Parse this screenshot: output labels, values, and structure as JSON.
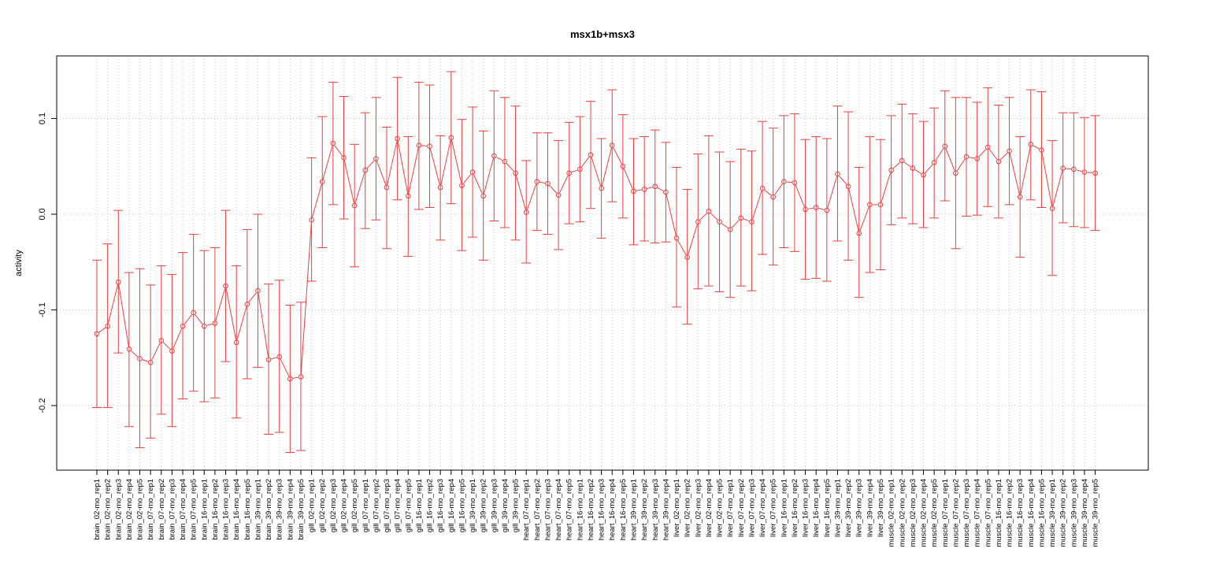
{
  "chart_data": {
    "type": "line",
    "title": "msx1b+msx3",
    "xlabel": "",
    "ylabel": "activity",
    "ylim": [
      -0.265,
      0.165
    ],
    "yticks": [
      0.1,
      0.0,
      -0.1,
      -0.2
    ],
    "ytick_labels": [
      "0.1",
      "0.0",
      "-0.1",
      "-0.2"
    ],
    "grid": true,
    "colors": {
      "series": "#e8413f",
      "grid": "#c8c8c8",
      "frame": "#000000"
    },
    "categories": [
      "brain_02-mo_rep1",
      "brain_02-mo_rep2",
      "brain_02-mo_rep3",
      "brain_02-mo_rep4",
      "brain_02-mo_rep5",
      "brain_07-mo_rep1",
      "brain_07-mo_rep2",
      "brain_07-mo_rep3",
      "brain_07-mo_rep4",
      "brain_07-mo_rep5",
      "brain_16-mo_rep1",
      "brain_16-mo_rep2",
      "brain_16-mo_rep3",
      "brain_16-mo_rep4",
      "brain_16-mo_rep5",
      "brain_39-mo_rep1",
      "brain_39-mo_rep2",
      "brain_39-mo_rep3",
      "brain_39-mo_rep4",
      "brain_39-mo_rep5",
      "gill_02-mo_rep1",
      "gill_02-mo_rep2",
      "gill_02-mo_rep3",
      "gill_02-mo_rep4",
      "gill_02-mo_rep5",
      "gill_07-mo_rep1",
      "gill_07-mo_rep2",
      "gill_07-mo_rep3",
      "gill_07-mo_rep4",
      "gill_07-mo_rep5",
      "gill_16-mo_rep1",
      "gill_16-mo_rep2",
      "gill_16-mo_rep3",
      "gill_16-mo_rep4",
      "gill_16-mo_rep5",
      "gill_39-mo_rep1",
      "gill_39-mo_rep2",
      "gill_39-mo_rep3",
      "gill_39-mo_rep4",
      "gill_39-mo_rep5",
      "heart_07-mo_rep1",
      "heart_07-mo_rep2",
      "heart_07-mo_rep3",
      "heart_07-mo_rep4",
      "heart_07-mo_rep5",
      "heart_16-mo_rep1",
      "heart_16-mo_rep2",
      "heart_16-mo_rep3",
      "heart_16-mo_rep4",
      "heart_16-mo_rep5",
      "heart_39-mo_rep1",
      "heart_39-mo_rep2",
      "heart_39-mo_rep3",
      "heart_39-mo_rep4",
      "liver_02-mo_rep1",
      "liver_02-mo_rep2",
      "liver_02-mo_rep3",
      "liver_02-mo_rep4",
      "liver_02-mo_rep5",
      "liver_07-mo_rep1",
      "liver_07-mo_rep2",
      "liver_07-mo_rep3",
      "liver_07-mo_rep4",
      "liver_07-mo_rep5",
      "liver_16-mo_rep1",
      "liver_16-mo_rep2",
      "liver_16-mo_rep3",
      "liver_16-mo_rep4",
      "liver_16-mo_rep5",
      "liver_39-mo_rep1",
      "liver_39-mo_rep2",
      "liver_39-mo_rep3",
      "liver_39-mo_rep4",
      "liver_39-mo_rep5",
      "muscle_02-mo_rep1",
      "muscle_02-mo_rep2",
      "muscle_02-mo_rep3",
      "muscle_02-mo_rep4",
      "muscle_02-mo_rep5",
      "muscle_07-mo_rep1",
      "muscle_07-mo_rep2",
      "muscle_07-mo_rep3",
      "muscle_07-mo_rep4",
      "muscle_07-mo_rep5",
      "muscle_16-mo_rep1",
      "muscle_16-mo_rep2",
      "muscle_16-mo_rep3",
      "muscle_16-mo_rep4",
      "muscle_16-mo_rep5",
      "muscle_39-mo_rep1",
      "muscle_39-mo_rep2",
      "muscle_39-mo_rep3",
      "muscle_39-mo_rep4",
      "muscle_39-mo_rep5"
    ],
    "series": [
      {
        "values": [
          -0.125,
          -0.117,
          -0.071,
          -0.141,
          -0.151,
          -0.155,
          -0.132,
          -0.143,
          -0.117,
          -0.103,
          -0.117,
          -0.114,
          -0.075,
          -0.134,
          -0.094,
          -0.08,
          -0.152,
          -0.149,
          -0.172,
          -0.17,
          -0.006,
          0.034,
          0.074,
          0.059,
          0.009,
          0.046,
          0.058,
          0.028,
          0.079,
          0.019,
          0.072,
          0.071,
          0.028,
          0.08,
          0.03,
          0.044,
          0.019,
          0.061,
          0.055,
          0.043,
          0.002,
          0.034,
          0.032,
          0.02,
          0.043,
          0.047,
          0.062,
          0.027,
          0.072,
          0.05,
          0.024,
          0.026,
          0.029,
          0.023,
          -0.025,
          -0.045,
          -0.008,
          0.003,
          -0.008,
          -0.016,
          -0.004,
          -0.008,
          0.027,
          0.018,
          0.034,
          0.033,
          0.005,
          0.007,
          0.004,
          0.042,
          0.029,
          -0.02,
          0.01,
          0.01,
          0.046,
          0.056,
          0.048,
          0.041,
          0.054,
          0.071,
          0.043,
          0.06,
          0.058,
          0.07,
          0.055,
          0.066,
          0.018,
          0.073,
          0.067,
          0.006,
          0.048,
          0.047,
          0.044,
          0.043
        ],
        "upper": [
          -0.048,
          -0.031,
          0.004,
          -0.061,
          -0.057,
          -0.074,
          -0.054,
          -0.063,
          -0.04,
          -0.021,
          -0.038,
          -0.035,
          0.004,
          -0.054,
          -0.016,
          0.0,
          -0.073,
          -0.069,
          -0.095,
          -0.092,
          0.059,
          0.102,
          0.138,
          0.123,
          0.073,
          0.106,
          0.122,
          0.091,
          0.143,
          0.081,
          0.138,
          0.135,
          0.082,
          0.149,
          0.099,
          0.112,
          0.087,
          0.129,
          0.122,
          0.113,
          0.056,
          0.085,
          0.085,
          0.077,
          0.096,
          0.102,
          0.118,
          0.079,
          0.13,
          0.104,
          0.079,
          0.081,
          0.088,
          0.075,
          0.049,
          0.026,
          0.063,
          0.082,
          0.065,
          0.055,
          0.068,
          0.066,
          0.097,
          0.09,
          0.103,
          0.105,
          0.078,
          0.081,
          0.079,
          0.113,
          0.107,
          0.049,
          0.081,
          0.078,
          0.103,
          0.115,
          0.105,
          0.097,
          0.111,
          0.129,
          0.122,
          0.122,
          0.117,
          0.132,
          0.114,
          0.122,
          0.081,
          0.13,
          0.128,
          0.077,
          0.106,
          0.106,
          0.101,
          0.103
        ],
        "lower": [
          -0.202,
          -0.202,
          -0.145,
          -0.222,
          -0.244,
          -0.234,
          -0.209,
          -0.222,
          -0.193,
          -0.185,
          -0.196,
          -0.192,
          -0.154,
          -0.213,
          -0.172,
          -0.16,
          -0.23,
          -0.228,
          -0.249,
          -0.247,
          -0.07,
          -0.035,
          0.01,
          -0.005,
          -0.055,
          -0.015,
          -0.006,
          -0.036,
          0.015,
          -0.044,
          0.005,
          0.007,
          -0.027,
          0.011,
          -0.038,
          -0.024,
          -0.048,
          -0.007,
          -0.014,
          -0.027,
          -0.051,
          -0.017,
          -0.021,
          -0.037,
          -0.01,
          -0.008,
          0.006,
          -0.025,
          0.013,
          -0.004,
          -0.032,
          -0.028,
          -0.03,
          -0.029,
          -0.097,
          -0.115,
          -0.078,
          -0.075,
          -0.081,
          -0.087,
          -0.075,
          -0.08,
          -0.042,
          -0.053,
          -0.035,
          -0.039,
          -0.068,
          -0.067,
          -0.07,
          -0.028,
          -0.048,
          -0.087,
          -0.061,
          -0.058,
          -0.011,
          -0.004,
          -0.01,
          -0.014,
          -0.004,
          0.014,
          -0.036,
          -0.002,
          -0.001,
          0.008,
          -0.004,
          0.01,
          -0.045,
          0.015,
          0.007,
          -0.064,
          -0.009,
          -0.013,
          -0.014,
          -0.017
        ]
      }
    ]
  }
}
